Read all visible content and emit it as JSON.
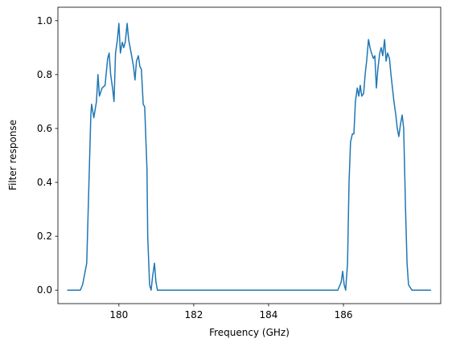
{
  "chart_data": {
    "type": "line",
    "xlabel": "Frequency (GHz)",
    "ylabel": "Filter response",
    "xlim": [
      178.37,
      188.6
    ],
    "ylim": [
      -0.05,
      1.05
    ],
    "xticks": [
      180,
      182,
      184,
      186
    ],
    "yticks": [
      {
        "value": 0,
        "label": "0.0"
      },
      0.2,
      0.4,
      0.6,
      0.8,
      {
        "value": 1,
        "label": "1.0"
      }
    ],
    "series": [
      {
        "color": "#1f77b4",
        "x": [
          178.62,
          178.97,
          179.03,
          179.14,
          179.2,
          179.25,
          179.27,
          179.33,
          179.4,
          179.44,
          179.48,
          179.55,
          179.63,
          179.7,
          179.74,
          179.78,
          179.83,
          179.87,
          179.91,
          179.96,
          180.0,
          180.04,
          180.09,
          180.13,
          180.17,
          180.22,
          180.26,
          180.3,
          180.34,
          180.39,
          180.43,
          180.47,
          180.52,
          180.56,
          180.6,
          180.65,
          180.69,
          180.71,
          180.75,
          180.77,
          180.82,
          180.86,
          180.9,
          180.95,
          180.99,
          181.03,
          185.85,
          185.94,
          185.98,
          186.02,
          186.06,
          186.11,
          186.15,
          186.19,
          186.24,
          186.28,
          186.32,
          186.37,
          186.41,
          186.45,
          186.49,
          186.54,
          186.58,
          186.62,
          186.67,
          186.71,
          186.75,
          186.8,
          186.84,
          186.88,
          186.92,
          186.97,
          187.01,
          187.05,
          187.1,
          187.14,
          187.18,
          187.23,
          187.27,
          187.31,
          187.35,
          187.4,
          187.44,
          187.48,
          187.53,
          187.57,
          187.61,
          187.66,
          187.7,
          187.74,
          187.83,
          188.34
        ],
        "values": [
          0,
          0,
          0.02,
          0.1,
          0.4,
          0.65,
          0.69,
          0.64,
          0.7,
          0.8,
          0.72,
          0.75,
          0.76,
          0.86,
          0.88,
          0.8,
          0.75,
          0.7,
          0.88,
          0.93,
          0.99,
          0.88,
          0.92,
          0.9,
          0.92,
          0.99,
          0.93,
          0.9,
          0.87,
          0.83,
          0.78,
          0.85,
          0.87,
          0.83,
          0.82,
          0.69,
          0.68,
          0.6,
          0.45,
          0.2,
          0.02,
          0,
          0.05,
          0.1,
          0.03,
          0,
          0,
          0.03,
          0.07,
          0.02,
          0,
          0.1,
          0.4,
          0.55,
          0.58,
          0.58,
          0.7,
          0.75,
          0.72,
          0.76,
          0.72,
          0.73,
          0.8,
          0.85,
          0.93,
          0.9,
          0.88,
          0.86,
          0.87,
          0.75,
          0.82,
          0.88,
          0.9,
          0.87,
          0.93,
          0.85,
          0.88,
          0.86,
          0.8,
          0.75,
          0.7,
          0.65,
          0.6,
          0.57,
          0.62,
          0.65,
          0.6,
          0.3,
          0.1,
          0.02,
          0,
          0
        ]
      }
    ]
  }
}
